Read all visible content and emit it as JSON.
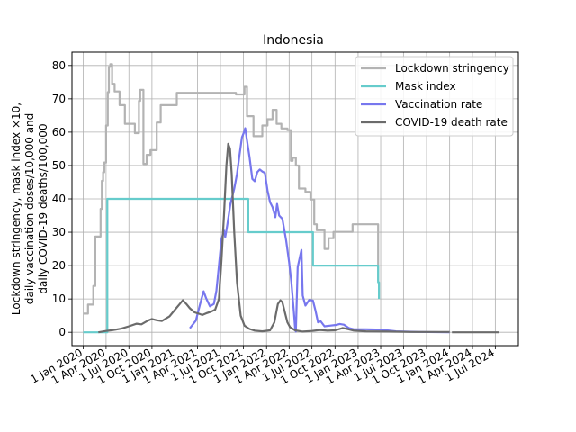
{
  "chart_data": {
    "type": "line",
    "title": "Indonesia",
    "ylabel_lines": [
      "Lockdown stringency, mask index ×10,",
      "daily vaccination doses/10,000 and",
      "daily COVID-19 deaths/100,000"
    ],
    "xlabel": "",
    "ylim": [
      -4,
      84
    ],
    "yticks": [
      0,
      10,
      20,
      30,
      40,
      50,
      60,
      70,
      80
    ],
    "xlim": [
      "2019-11-17",
      "2024-10-01"
    ],
    "xticks": [
      {
        "date": "2020-01-01",
        "label": "1 Jan 2020"
      },
      {
        "date": "2020-04-01",
        "label": "1 Apr 2020"
      },
      {
        "date": "2020-07-01",
        "label": "1 Jul 2020"
      },
      {
        "date": "2020-10-01",
        "label": "1 Oct 2020"
      },
      {
        "date": "2021-01-01",
        "label": "1 Jan 2021"
      },
      {
        "date": "2021-04-01",
        "label": "1 Apr 2021"
      },
      {
        "date": "2021-07-01",
        "label": "1 Jul 2021"
      },
      {
        "date": "2021-10-01",
        "label": "1 Oct 2021"
      },
      {
        "date": "2022-01-01",
        "label": "1 Jan 2022"
      },
      {
        "date": "2022-04-01",
        "label": "1 Apr 2022"
      },
      {
        "date": "2022-07-01",
        "label": "1 Jul 2022"
      },
      {
        "date": "2022-10-01",
        "label": "1 Oct 2022"
      },
      {
        "date": "2023-01-01",
        "label": "1 Jan 2023"
      },
      {
        "date": "2023-04-01",
        "label": "1 Apr 2023"
      },
      {
        "date": "2023-07-01",
        "label": "1 Jul 2023"
      },
      {
        "date": "2023-10-01",
        "label": "1 Oct 2023"
      },
      {
        "date": "2024-01-01",
        "label": "1 Jan 2024"
      },
      {
        "date": "2024-04-01",
        "label": "1 Apr 2024"
      },
      {
        "date": "2024-07-01",
        "label": "1 Jul 2024"
      }
    ],
    "grid": true,
    "legend_position": "top-right",
    "series": [
      {
        "name": "Lockdown stringency",
        "color": "#b3b3b3",
        "step": true,
        "points": [
          [
            "2020-01-01",
            5.6
          ],
          [
            "2020-01-20",
            8.3
          ],
          [
            "2020-02-10",
            13.9
          ],
          [
            "2020-02-18",
            28.7
          ],
          [
            "2020-03-10",
            37
          ],
          [
            "2020-03-15",
            45.4
          ],
          [
            "2020-03-20",
            48
          ],
          [
            "2020-03-25",
            50.9
          ],
          [
            "2020-04-01",
            62
          ],
          [
            "2020-04-08",
            72
          ],
          [
            "2020-04-12",
            79.6
          ],
          [
            "2020-04-18",
            80.4
          ],
          [
            "2020-04-25",
            74.5
          ],
          [
            "2020-05-05",
            72.2
          ],
          [
            "2020-05-25",
            68.1
          ],
          [
            "2020-06-15",
            62.5
          ],
          [
            "2020-07-25",
            59.7
          ],
          [
            "2020-08-10",
            69.4
          ],
          [
            "2020-08-15",
            72.7
          ],
          [
            "2020-08-28",
            50.5
          ],
          [
            "2020-09-10",
            53.2
          ],
          [
            "2020-09-25",
            54.6
          ],
          [
            "2020-10-20",
            62.9
          ],
          [
            "2020-11-05",
            68.1
          ],
          [
            "2020-12-15",
            68.1
          ],
          [
            "2021-01-08",
            71.8
          ],
          [
            "2021-03-15",
            71.8
          ],
          [
            "2021-06-01",
            71.8
          ],
          [
            "2021-09-01",
            71.3
          ],
          [
            "2021-09-25",
            71.3
          ],
          [
            "2021-10-05",
            73.6
          ],
          [
            "2021-10-15",
            64.8
          ],
          [
            "2021-11-10",
            58.8
          ],
          [
            "2021-12-15",
            62
          ],
          [
            "2022-01-05",
            63.9
          ],
          [
            "2022-01-25",
            66.7
          ],
          [
            "2022-02-10",
            62.5
          ],
          [
            "2022-03-01",
            61.1
          ],
          [
            "2022-03-25",
            60.6
          ],
          [
            "2022-04-08",
            51.4
          ],
          [
            "2022-04-15",
            52.3
          ],
          [
            "2022-04-28",
            50
          ],
          [
            "2022-05-10",
            43.1
          ],
          [
            "2022-06-05",
            42.1
          ],
          [
            "2022-06-25",
            39.8
          ],
          [
            "2022-07-10",
            32.4
          ],
          [
            "2022-07-20",
            30.6
          ],
          [
            "2022-08-20",
            25
          ],
          [
            "2022-09-05",
            28.2
          ],
          [
            "2022-09-25",
            30.1
          ],
          [
            "2022-12-10",
            32.4
          ],
          [
            "2023-03-15",
            32.4
          ],
          [
            "2023-03-22",
            15.3
          ]
        ]
      },
      {
        "name": "Mask index",
        "color": "#66cccc",
        "step": true,
        "points": [
          [
            "2020-01-01",
            0
          ],
          [
            "2020-04-05",
            0
          ],
          [
            "2020-04-06",
            40
          ],
          [
            "2021-10-01",
            40
          ],
          [
            "2021-10-20",
            30
          ],
          [
            "2022-06-20",
            30
          ],
          [
            "2022-07-05",
            20
          ],
          [
            "2023-03-20",
            20
          ],
          [
            "2023-03-22",
            15
          ],
          [
            "2023-03-25",
            10
          ]
        ]
      },
      {
        "name": "Vaccination rate",
        "color": "#7777ee",
        "step": false,
        "points": [
          [
            "2021-03-01",
            1.2
          ],
          [
            "2021-03-25",
            3.5
          ],
          [
            "2021-04-10",
            8.2
          ],
          [
            "2021-04-25",
            12.3
          ],
          [
            "2021-05-05",
            10.2
          ],
          [
            "2021-05-20",
            7.8
          ],
          [
            "2021-06-05",
            8.5
          ],
          [
            "2021-06-15",
            12.5
          ],
          [
            "2021-06-25",
            20
          ],
          [
            "2021-07-05",
            27.8
          ],
          [
            "2021-07-15",
            30.5
          ],
          [
            "2021-07-20",
            28.5
          ],
          [
            "2021-07-28",
            32
          ],
          [
            "2021-08-10",
            38.5
          ],
          [
            "2021-08-25",
            43
          ],
          [
            "2021-09-05",
            47.5
          ],
          [
            "2021-09-15",
            53
          ],
          [
            "2021-09-25",
            58.5
          ],
          [
            "2021-10-02",
            59.8
          ],
          [
            "2021-10-08",
            61.2
          ],
          [
            "2021-10-15",
            57.5
          ],
          [
            "2021-10-25",
            52.5
          ],
          [
            "2021-11-05",
            46
          ],
          [
            "2021-11-15",
            45.3
          ],
          [
            "2021-11-25",
            48
          ],
          [
            "2021-12-05",
            48.8
          ],
          [
            "2021-12-15",
            48.2
          ],
          [
            "2021-12-25",
            47.8
          ],
          [
            "2022-01-05",
            42.5
          ],
          [
            "2022-01-15",
            39
          ],
          [
            "2022-01-25",
            37.5
          ],
          [
            "2022-02-05",
            34.5
          ],
          [
            "2022-02-12",
            38.5
          ],
          [
            "2022-02-20",
            35
          ],
          [
            "2022-03-05",
            34
          ],
          [
            "2022-03-20",
            27.5
          ],
          [
            "2022-04-01",
            21
          ],
          [
            "2022-04-10",
            15
          ],
          [
            "2022-04-20",
            6
          ],
          [
            "2022-04-25",
            1
          ],
          [
            "2022-04-28",
            0.2
          ],
          [
            "2022-05-05",
            19.5
          ],
          [
            "2022-05-15",
            23
          ],
          [
            "2022-05-20",
            24.7
          ],
          [
            "2022-05-25",
            11
          ],
          [
            "2022-06-05",
            8
          ],
          [
            "2022-06-20",
            9.7
          ],
          [
            "2022-07-05",
            9.5
          ],
          [
            "2022-07-15",
            6.5
          ],
          [
            "2022-07-25",
            3
          ],
          [
            "2022-08-05",
            3.3
          ],
          [
            "2022-08-20",
            1.8
          ],
          [
            "2022-09-10",
            2
          ],
          [
            "2022-10-05",
            2.2
          ],
          [
            "2022-10-20",
            2.5
          ],
          [
            "2022-11-05",
            2.3
          ],
          [
            "2022-11-25",
            1.3
          ],
          [
            "2022-12-15",
            0.9
          ],
          [
            "2023-02-01",
            0.9
          ],
          [
            "2023-04-01",
            0.8
          ],
          [
            "2023-06-01",
            0.3
          ],
          [
            "2023-09-01",
            0.1
          ],
          [
            "2024-01-01",
            0
          ]
        ]
      },
      {
        "name": "COVID-19 death rate",
        "color": "#6b6b6b",
        "step": false,
        "points": [
          [
            "2020-03-01",
            0
          ],
          [
            "2020-04-01",
            0.4
          ],
          [
            "2020-05-01",
            0.7
          ],
          [
            "2020-06-01",
            1.1
          ],
          [
            "2020-07-01",
            1.8
          ],
          [
            "2020-08-01",
            2.6
          ],
          [
            "2020-08-20",
            2.4
          ],
          [
            "2020-09-15",
            3.5
          ],
          [
            "2020-10-01",
            4
          ],
          [
            "2020-10-20",
            3.6
          ],
          [
            "2020-11-10",
            3.4
          ],
          [
            "2020-12-10",
            4.8
          ],
          [
            "2021-01-01",
            6.8
          ],
          [
            "2021-01-20",
            8.5
          ],
          [
            "2021-02-01",
            9.6
          ],
          [
            "2021-02-15",
            8.5
          ],
          [
            "2021-03-01",
            7.2
          ],
          [
            "2021-03-20",
            6
          ],
          [
            "2021-04-05",
            5.6
          ],
          [
            "2021-04-20",
            5.2
          ],
          [
            "2021-05-05",
            5.7
          ],
          [
            "2021-05-25",
            6.2
          ],
          [
            "2021-06-10",
            6.8
          ],
          [
            "2021-06-25",
            10
          ],
          [
            "2021-07-05",
            21.5
          ],
          [
            "2021-07-15",
            35
          ],
          [
            "2021-07-25",
            50
          ],
          [
            "2021-08-01",
            56.5
          ],
          [
            "2021-08-08",
            55
          ],
          [
            "2021-08-15",
            47.5
          ],
          [
            "2021-08-25",
            30
          ],
          [
            "2021-09-05",
            15
          ],
          [
            "2021-09-20",
            5
          ],
          [
            "2021-10-05",
            2
          ],
          [
            "2021-10-25",
            1
          ],
          [
            "2021-11-15",
            0.5
          ],
          [
            "2021-12-15",
            0.3
          ],
          [
            "2022-01-15",
            0.6
          ],
          [
            "2022-02-01",
            3
          ],
          [
            "2022-02-15",
            8.5
          ],
          [
            "2022-02-25",
            9.6
          ],
          [
            "2022-03-05",
            9
          ],
          [
            "2022-03-15",
            6
          ],
          [
            "2022-03-25",
            3
          ],
          [
            "2022-04-05",
            1.5
          ],
          [
            "2022-04-25",
            0.6
          ],
          [
            "2022-05-25",
            0.2
          ],
          [
            "2022-07-01",
            0.4
          ],
          [
            "2022-08-01",
            0.7
          ],
          [
            "2022-09-01",
            0.5
          ],
          [
            "2022-10-01",
            0.6
          ],
          [
            "2022-11-01",
            1.3
          ],
          [
            "2022-11-20",
            1
          ],
          [
            "2022-12-15",
            0.5
          ],
          [
            "2023-02-01",
            0.3
          ],
          [
            "2023-05-01",
            0.2
          ],
          [
            "2023-08-01",
            0.1
          ],
          [
            "2024-01-01",
            0.1
          ]
        ]
      },
      {
        "name": "",
        "color": "#6b6b6b",
        "step": false,
        "points": [
          [
            "2024-01-10",
            0
          ],
          [
            "2024-07-15",
            0
          ]
        ]
      }
    ]
  }
}
